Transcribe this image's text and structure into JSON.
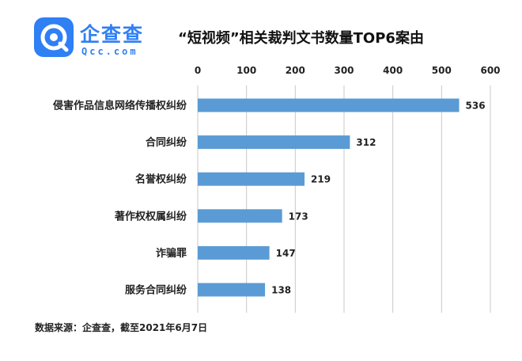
{
  "brand": {
    "name": "企查查",
    "domain": "Qcc.com",
    "color": "#2f7ff5"
  },
  "title": "“短视频”相关裁判文书数量TOP6案由",
  "source": "数据来源：企查查，截至2021年6月7日",
  "chart_data": {
    "type": "bar",
    "orientation": "horizontal",
    "title": "“短视频”相关裁判文书数量TOP6案由",
    "xlabel": "",
    "ylabel": "",
    "xlim": [
      0,
      600
    ],
    "xticks": [
      0,
      100,
      200,
      300,
      400,
      500,
      600
    ],
    "x_axis_position": "top",
    "grid": "vertical",
    "bar_color": "#5b9bd5",
    "categories": [
      "侵害作品信息网络传播权纠纷",
      "合同纠纷",
      "名誉权纠纷",
      "著作权权属纠纷",
      "诈骗罪",
      "服务合同纠纷"
    ],
    "values": [
      536,
      312,
      219,
      173,
      147,
      138
    ]
  }
}
